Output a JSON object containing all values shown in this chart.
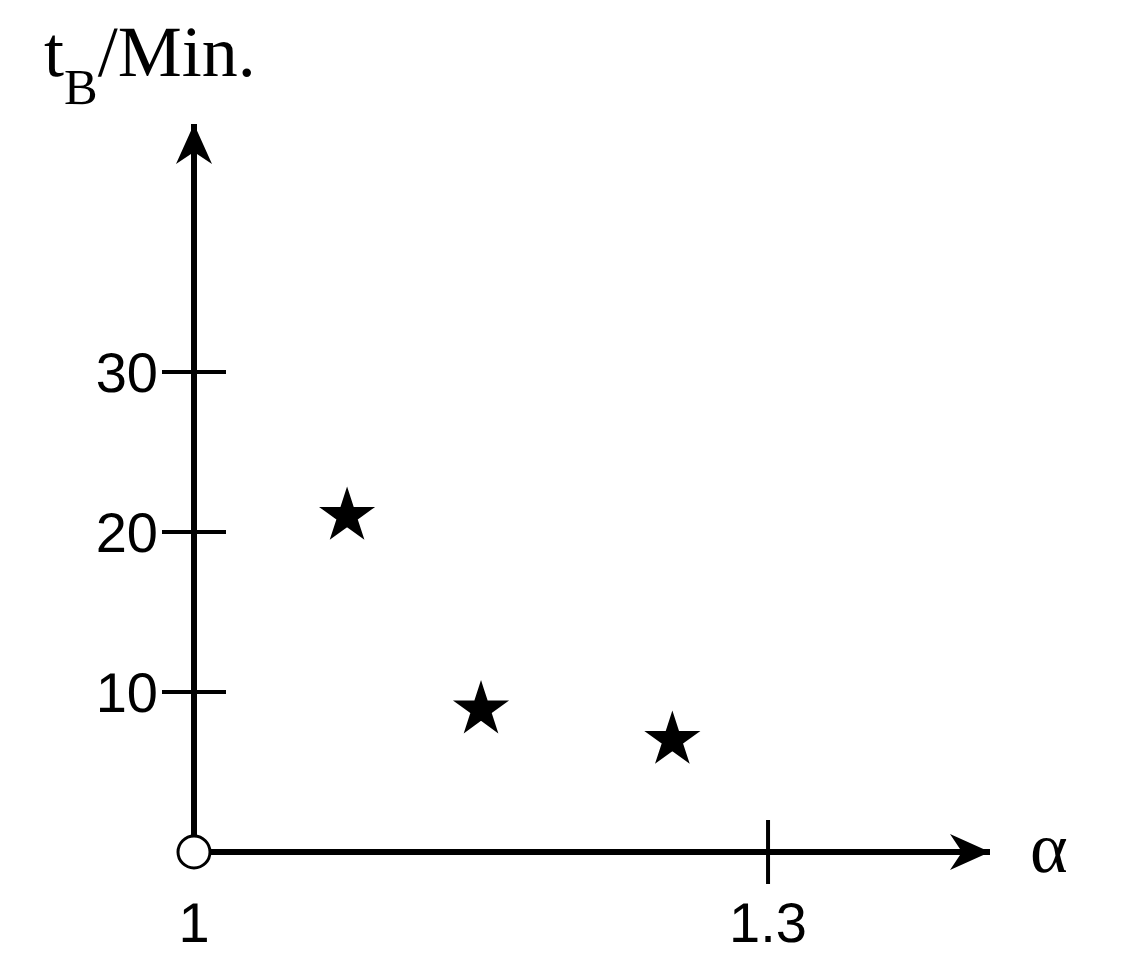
{
  "chart_data": {
    "type": "scatter",
    "ylabel": "t$_{B}$/Min.",
    "xlabel": "α",
    "x": [
      1.08,
      1.15,
      1.25
    ],
    "values": [
      21,
      8.9,
      7
    ],
    "color": "#000000",
    "marker": "star",
    "xlim": [
      1,
      1.416
    ],
    "ylim": [
      0,
      45.5
    ],
    "xticks": [
      {
        "value": 1,
        "label": "1"
      },
      1.3
    ],
    "yticks": [
      10,
      20,
      30
    ],
    "grid": false
  }
}
